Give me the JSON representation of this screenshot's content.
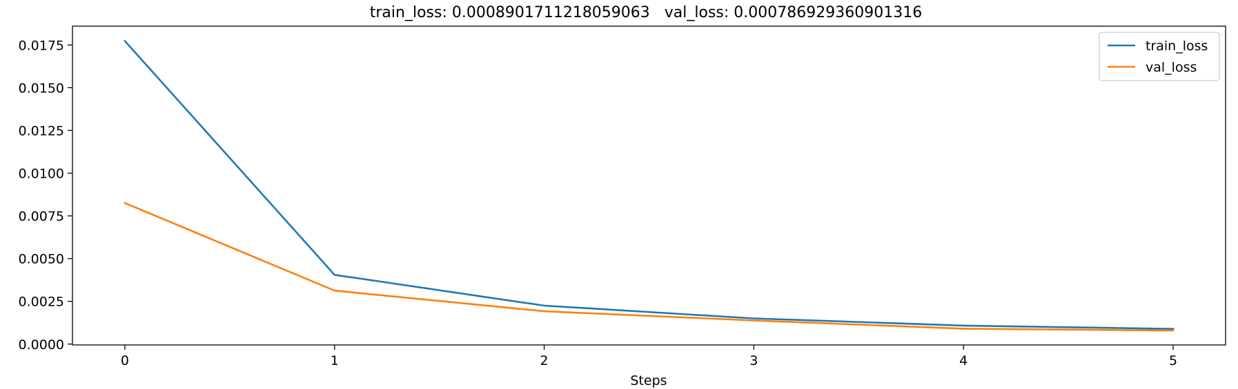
{
  "chart_data": {
    "type": "line",
    "title": "train_loss: 0.0008901711218059063   val_loss: 0.000786929360901316",
    "xlabel": "Steps",
    "ylabel": "",
    "x": [
      0,
      1,
      2,
      3,
      4,
      5
    ],
    "xlim": [
      -0.25,
      5.25
    ],
    "ylim": [
      -5e-05,
      0.0186
    ],
    "xticks": [
      0,
      1,
      2,
      3,
      4,
      5
    ],
    "xtick_labels": [
      "0",
      "1",
      "2",
      "3",
      "4",
      "5"
    ],
    "yticks": [
      0,
      0.0025,
      0.005,
      0.0075,
      0.01,
      0.0125,
      0.015,
      0.0175
    ],
    "ytick_labels": [
      "0.0000",
      "0.0025",
      "0.0050",
      "0.0075",
      "0.0100",
      "0.0125",
      "0.0150",
      "0.0175"
    ],
    "grid": false,
    "legend_position": "top-right",
    "series": [
      {
        "name": "train_loss",
        "color": "#1f77b4",
        "values": [
          0.01773,
          0.00405,
          0.00225,
          0.0015,
          0.00108,
          0.00089
        ]
      },
      {
        "name": "val_loss",
        "color": "#ff7f0e",
        "values": [
          0.00825,
          0.00313,
          0.00192,
          0.00138,
          0.0009,
          0.00079
        ]
      }
    ]
  }
}
